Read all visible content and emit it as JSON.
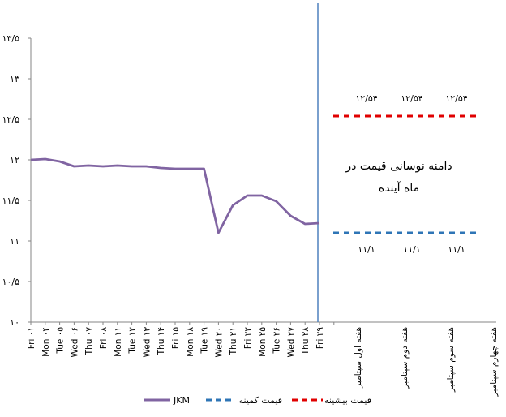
{
  "chart_data": {
    "type": "line",
    "title": "",
    "xlabel": "",
    "ylabel": "",
    "ylim": [
      10,
      13.5
    ],
    "grid": false,
    "y_ticks": [
      "۱۰",
      "۱۰/۵",
      "۱۱",
      "۱۱/۵",
      "۱۲",
      "۱۲/۵",
      "۱۳",
      "۱۳/۵"
    ],
    "categories": [
      "Fri ۰۱",
      "Mon ۰۴",
      "Tue ۰۵",
      "Wed ۰۶",
      "Thu ۰۷",
      "Fri ۰۸",
      "Mon ۱۱",
      "Tue ۱۲",
      "Wed ۱۳",
      "Thu ۱۴",
      "Fri ۱۵",
      "Mon ۱۸",
      "Tue ۱۹",
      "Wed ۲۰",
      "Thu ۲۱",
      "Fri ۲۲",
      "Mon ۲۵",
      "Tue ۲۶",
      "Wed ۲۷",
      "Thu ۲۸",
      "Fri ۲۹"
    ],
    "future_categories": [
      "هفته اول سپتامبر",
      "هفته دوم سپتامبر",
      "هفته سوم سپتامبر",
      "هفته چهارم سپتامبر"
    ],
    "series": [
      {
        "name": "JKM",
        "color": "#8064a2",
        "values": [
          12.0,
          12.01,
          11.98,
          11.92,
          11.93,
          11.92,
          11.93,
          11.92,
          11.92,
          11.9,
          11.89,
          11.89,
          11.89,
          11.1,
          11.44,
          11.56,
          11.56,
          11.49,
          11.31,
          11.21,
          11.22
        ]
      },
      {
        "name": "قیمت کمینه",
        "color": "#2e75b6",
        "style": "dashed",
        "value": 11.1,
        "labels": [
          "۱۱/۱",
          "۱۱/۱",
          "۱۱/۱"
        ]
      },
      {
        "name": "قیمت بیشینه",
        "color": "#e00000",
        "style": "dashed",
        "value": 12.54,
        "labels": [
          "۱۲/۵۴",
          "۱۲/۵۴",
          "۱۲/۵۴"
        ]
      }
    ],
    "annotation": [
      "دامنه نوسانی قیمت در",
      "ماه آینده"
    ],
    "legend_position": "bottom"
  }
}
